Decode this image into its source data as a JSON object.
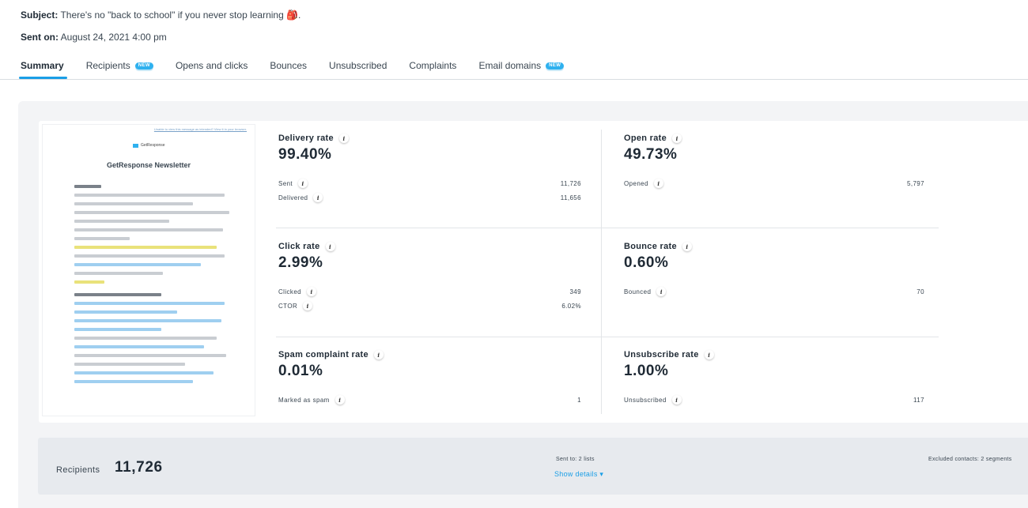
{
  "header": {
    "subject_label": "Subject:",
    "subject_value": "There's no \"back to school\" if you never stop learning 🎒.",
    "sent_label": "Sent on:",
    "sent_value": "August 24, 2021 4:00 pm"
  },
  "tabs": [
    {
      "label": "Summary",
      "active": true,
      "badge": ""
    },
    {
      "label": "Recipients",
      "active": false,
      "badge": "NEW"
    },
    {
      "label": "Opens and clicks",
      "active": false,
      "badge": ""
    },
    {
      "label": "Bounces",
      "active": false,
      "badge": ""
    },
    {
      "label": "Unsubscribed",
      "active": false,
      "badge": ""
    },
    {
      "label": "Complaints",
      "active": false,
      "badge": ""
    },
    {
      "label": "Email domains",
      "active": false,
      "badge": "NEW"
    }
  ],
  "preview": {
    "top_link": "Unable to view this message as intended? View it in your browser.",
    "brand": "GetResponse",
    "title": "GetResponse Newsletter"
  },
  "metrics": {
    "delivery": {
      "title": "Delivery rate",
      "value": "99.40%",
      "rows": [
        {
          "label": "Sent",
          "value": "11,726"
        },
        {
          "label": "Delivered",
          "value": "11,656"
        }
      ]
    },
    "open": {
      "title": "Open rate",
      "value": "49.73%",
      "rows": [
        {
          "label": "Opened",
          "value": "5,797"
        }
      ]
    },
    "click": {
      "title": "Click rate",
      "value": "2.99%",
      "rows": [
        {
          "label": "Clicked",
          "value": "349"
        },
        {
          "label": "CTOR",
          "value": "6.02%"
        }
      ]
    },
    "bounce": {
      "title": "Bounce rate",
      "value": "0.60%",
      "rows": [
        {
          "label": "Bounced",
          "value": "70"
        }
      ]
    },
    "spam": {
      "title": "Spam complaint rate",
      "value": "0.01%",
      "rows": [
        {
          "label": "Marked as spam",
          "value": "1"
        }
      ]
    },
    "unsub": {
      "title": "Unsubscribe rate",
      "value": "1.00%",
      "rows": [
        {
          "label": "Unsubscribed",
          "value": "117"
        }
      ]
    }
  },
  "recipients": {
    "label": "Recipients",
    "value": "11,726",
    "sent_to": "Sent to: 2 lists",
    "show_details": "Show details ▾",
    "excluded": "Excluded contacts: 2 segments"
  },
  "colors": {
    "accent": "#1a9ee6",
    "badge": "#2fb1ef",
    "panel": "#f3f4f6"
  }
}
